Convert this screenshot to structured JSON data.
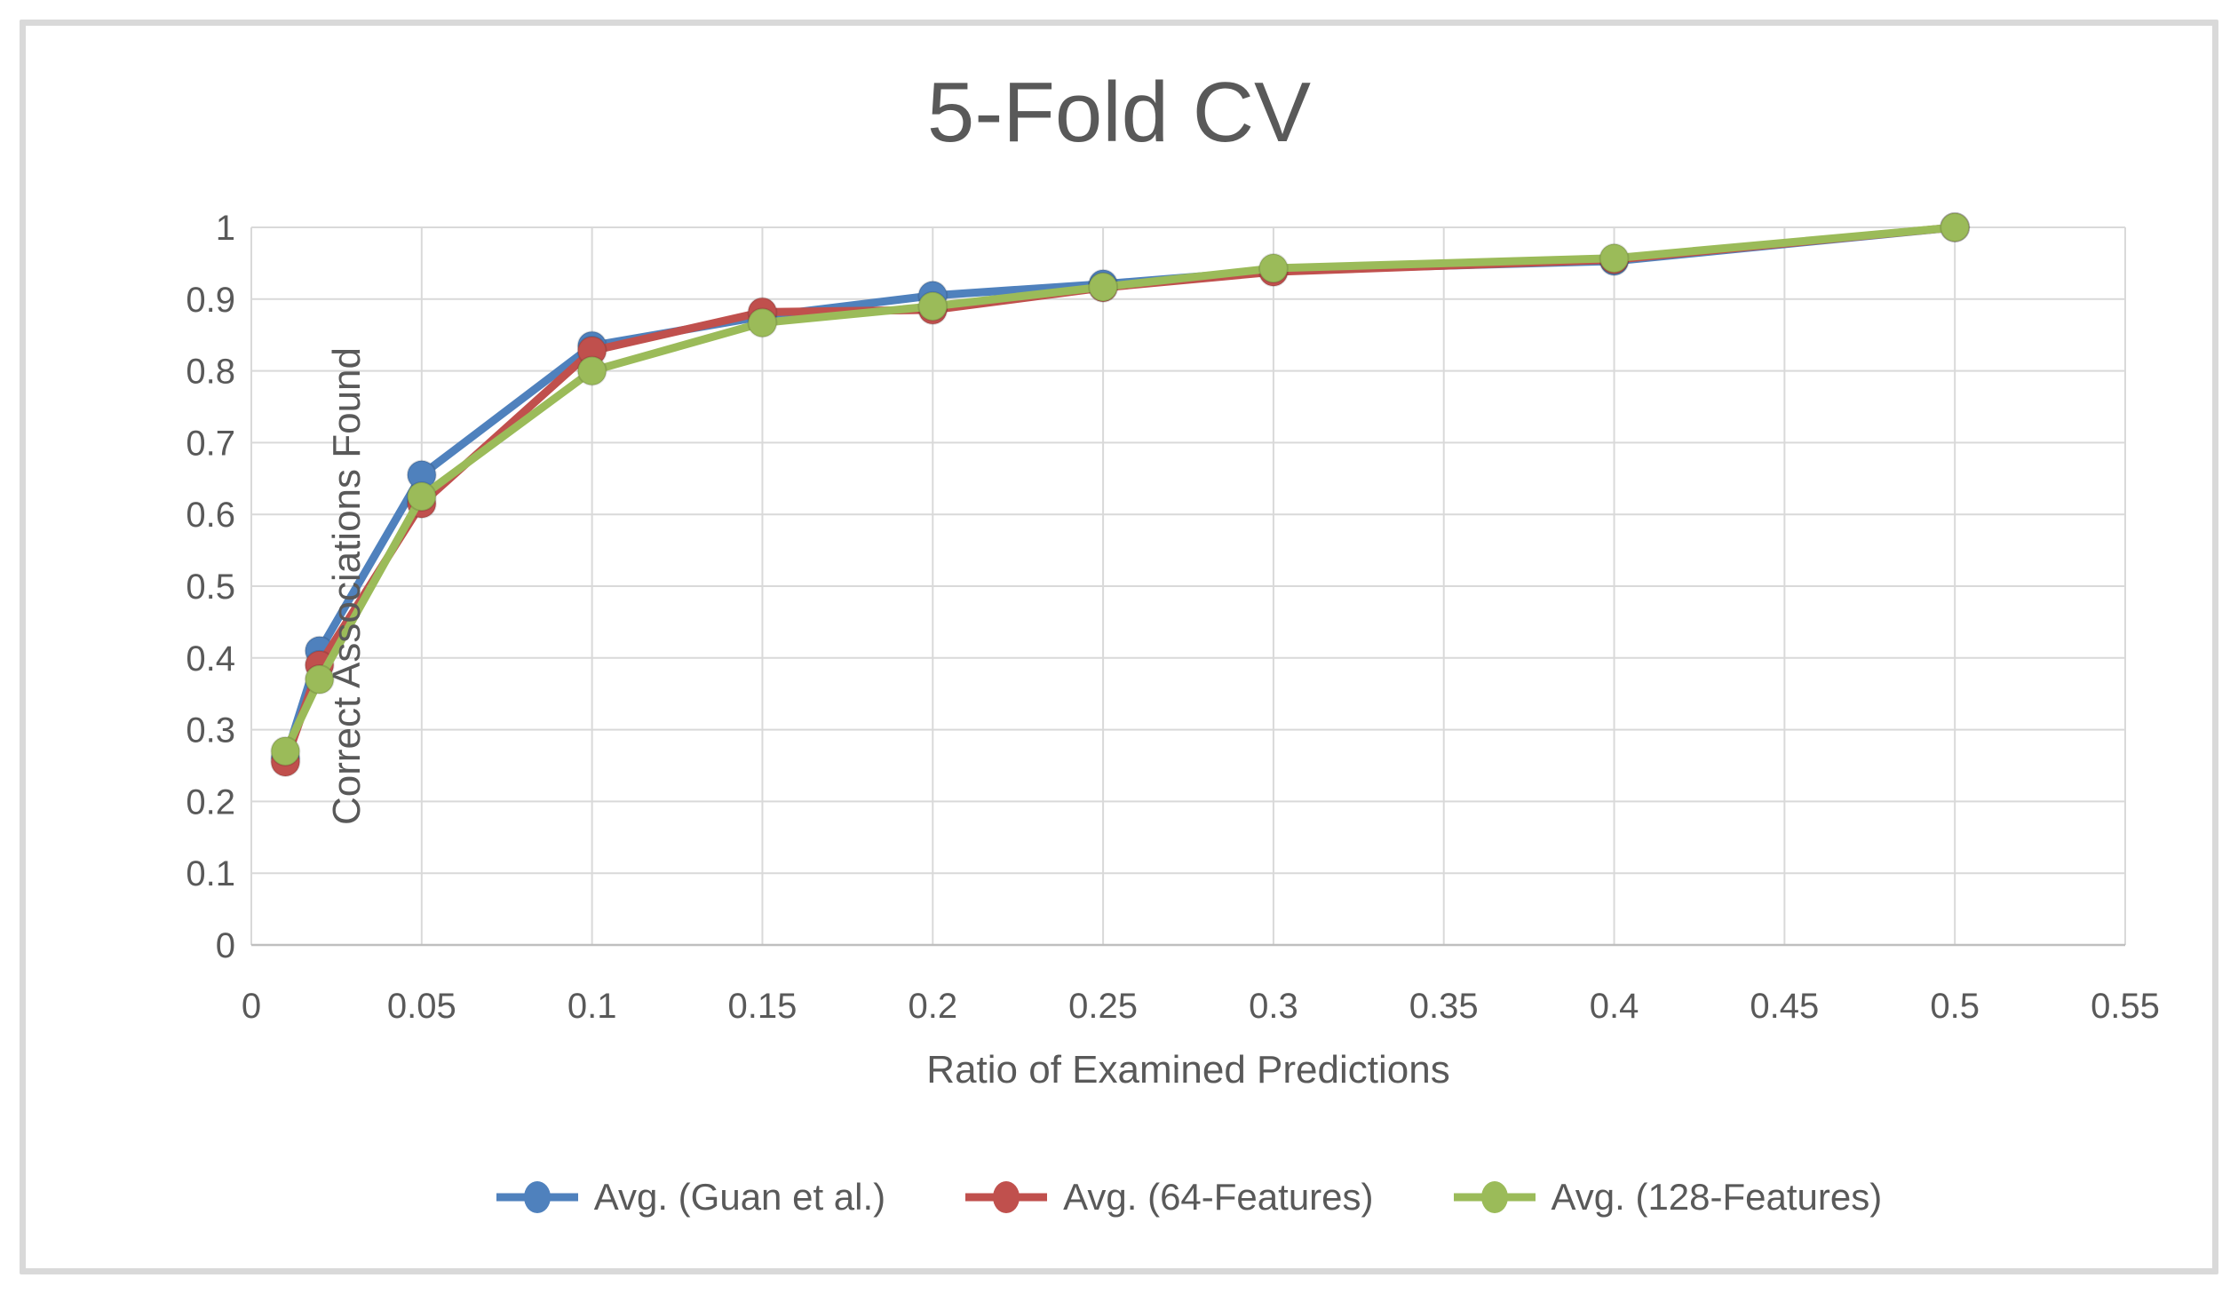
{
  "chart_data": {
    "type": "line",
    "title": "5-Fold CV",
    "xlabel": "Ratio of Examined Predictions",
    "ylabel": "Correct Associations Found",
    "x": [
      0.01,
      0.02,
      0.05,
      0.1,
      0.15,
      0.2,
      0.25,
      0.3,
      0.4,
      0.5
    ],
    "series": [
      {
        "name": "Avg. (Guan et al.)",
        "color": "#4F81BD",
        "values": [
          0.26,
          0.41,
          0.655,
          0.835,
          0.876,
          0.905,
          0.921,
          0.94,
          0.953,
          1.0
        ]
      },
      {
        "name": "Avg. (64-Features)",
        "color": "#C0504D",
        "values": [
          0.255,
          0.39,
          0.615,
          0.828,
          0.882,
          0.885,
          0.916,
          0.938,
          0.955,
          1.0
        ]
      },
      {
        "name": "Avg. (128-Features)",
        "color": "#9BBB59",
        "values": [
          0.27,
          0.37,
          0.625,
          0.8,
          0.867,
          0.89,
          0.917,
          0.943,
          0.957,
          1.0
        ]
      }
    ],
    "xlim": [
      0,
      0.55
    ],
    "ylim": [
      0,
      1
    ],
    "x_ticks": [
      "0",
      "0.05",
      "0.1",
      "0.15",
      "0.2",
      "0.25",
      "0.3",
      "0.35",
      "0.4",
      "0.45",
      "0.5",
      "0.55"
    ],
    "y_ticks": [
      "0",
      "0.1",
      "0.2",
      "0.3",
      "0.4",
      "0.5",
      "0.6",
      "0.7",
      "0.8",
      "0.9",
      "1"
    ],
    "grid": true,
    "legend_position": "bottom",
    "marker": "circle",
    "colors": {
      "text": "#595959",
      "gridline": "#D9D9D9",
      "axis_line": "#BFBFBF",
      "frame_border": "#D9D9D9",
      "background": "#FFFFFF"
    }
  }
}
